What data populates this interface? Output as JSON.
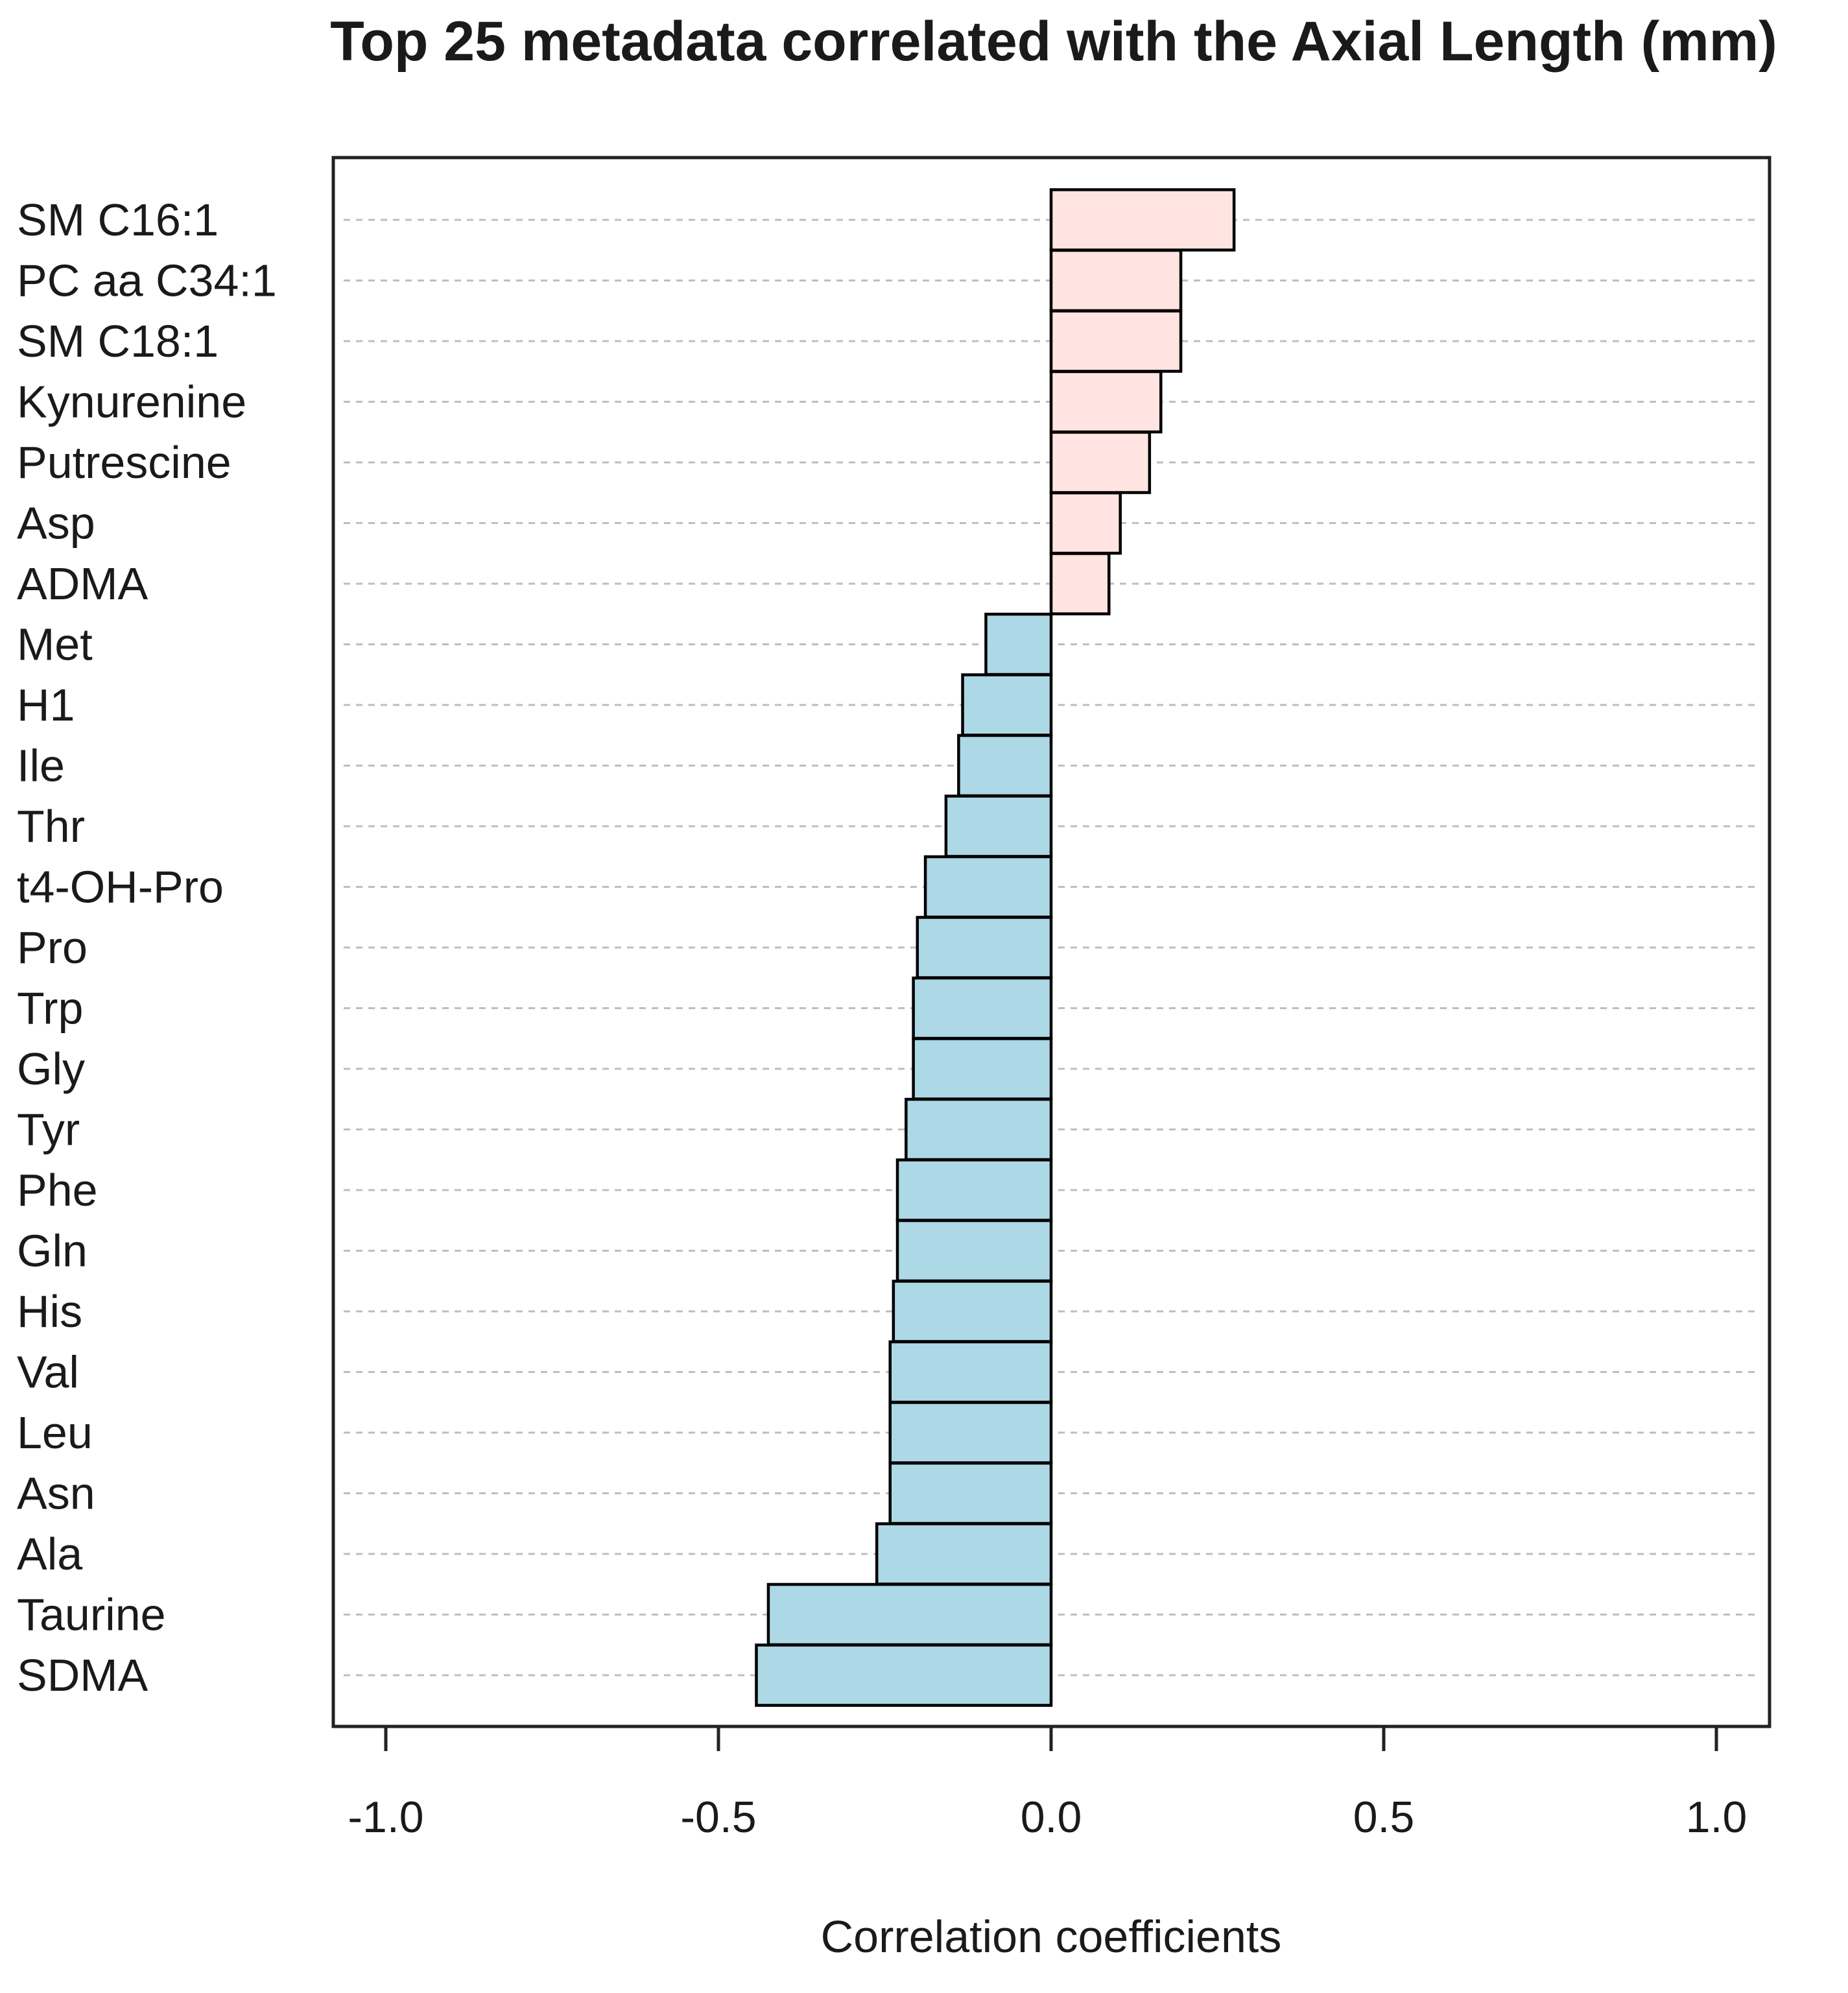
{
  "chart_data": {
    "type": "bar",
    "orientation": "horizontal",
    "title": "Top 25 metadata correlated with the Axial Length (mm)",
    "xlabel": "Correlation coefficients",
    "ylabel": "",
    "xlim": [
      -1.08,
      1.08
    ],
    "xticks": [
      -1.0,
      -0.5,
      0.0,
      0.5,
      1.0
    ],
    "xtick_labels": [
      "-1.0",
      "-0.5",
      "0.0",
      "0.5",
      "1.0"
    ],
    "grid": "horizontal dashed",
    "colors": {
      "positive": "#ffe4e1",
      "negative": "#add8e6",
      "border": "#000000",
      "grid": "#bebebe"
    },
    "categories": [
      "SM C16:1",
      "PC aa C34:1",
      "SM C18:1",
      "Kynurenine",
      "Putrescine",
      "Asp",
      "ADMA",
      "Met",
      "H1",
      "Ile",
      "Thr",
      "t4-OH-Pro",
      "Pro",
      "Trp",
      "Gly",
      "Tyr",
      "Phe",
      "Gln",
      "His",
      "Val",
      "Leu",
      "Asn",
      "Ala",
      "Taurine",
      "SDMA"
    ],
    "values": [
      0.275,
      0.195,
      0.195,
      0.165,
      0.148,
      0.104,
      0.087,
      -0.098,
      -0.133,
      -0.139,
      -0.158,
      -0.189,
      -0.201,
      -0.207,
      -0.207,
      -0.218,
      -0.231,
      -0.231,
      -0.237,
      -0.242,
      -0.242,
      -0.242,
      -0.262,
      -0.425,
      -0.443
    ]
  }
}
